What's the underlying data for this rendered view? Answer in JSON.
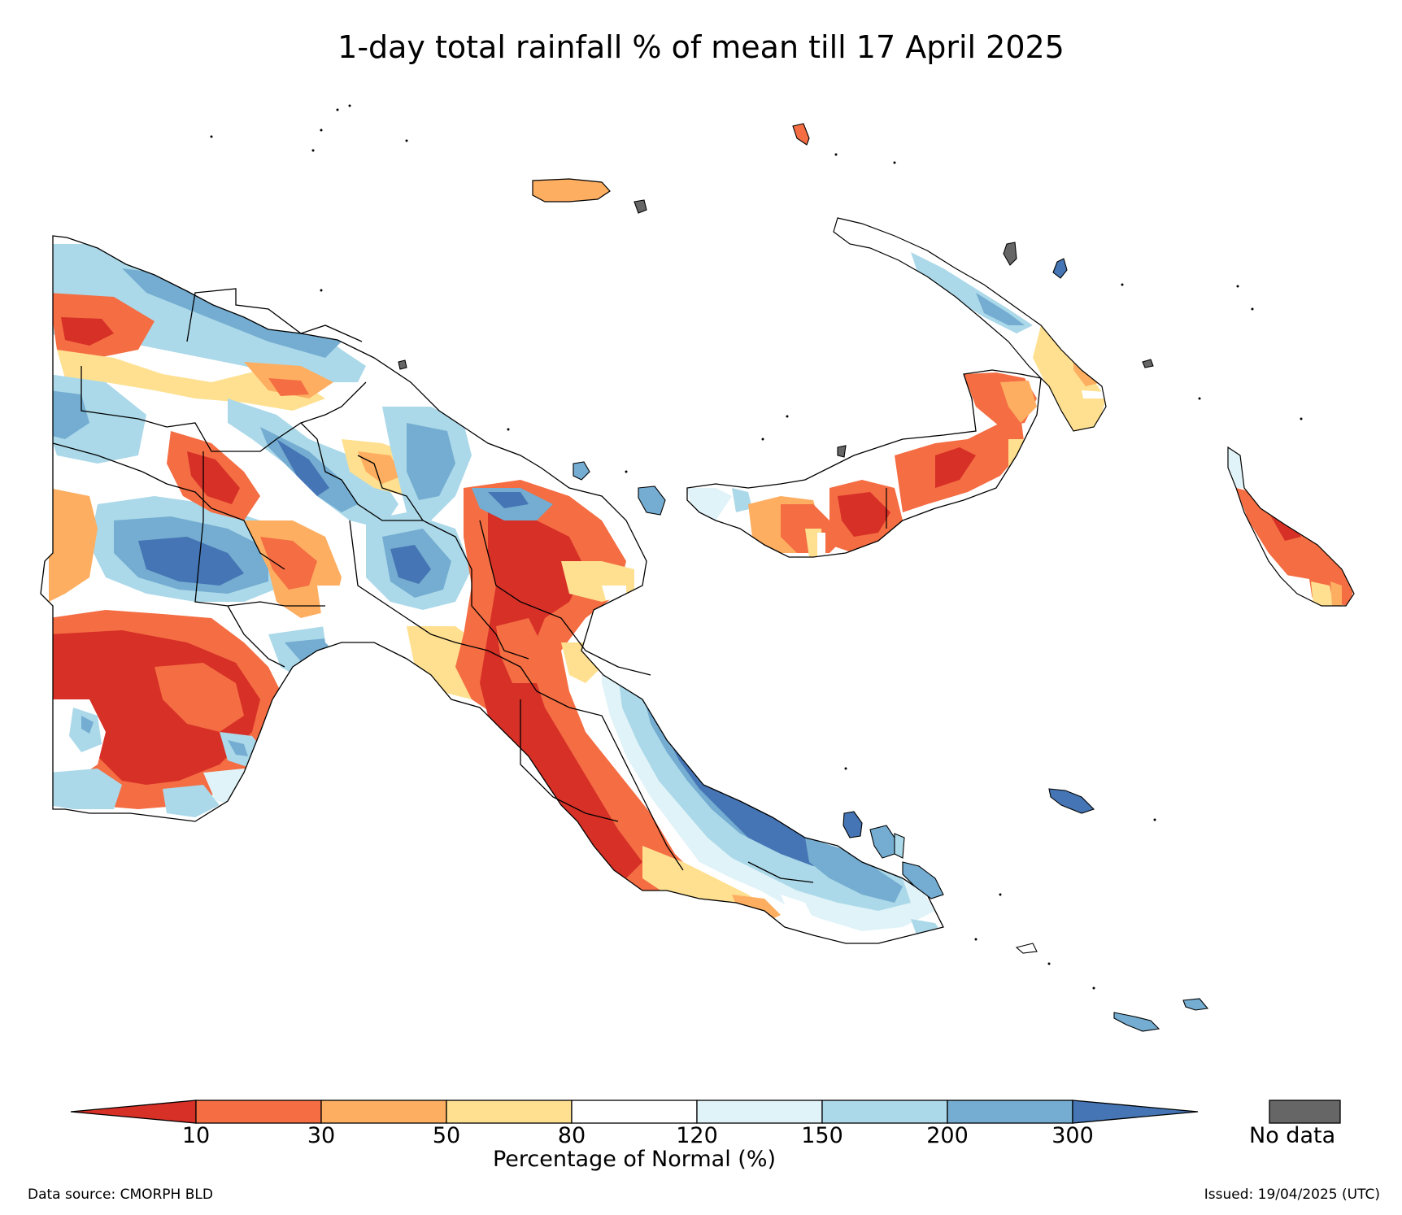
{
  "title": "1-day total rainfall % of mean till 17 April 2025",
  "legend": {
    "title": "Percentage of Normal (%)",
    "ticks": [
      "10",
      "30",
      "50",
      "80",
      "120",
      "150",
      "200",
      "300"
    ],
    "classes": [
      {
        "range": "<10",
        "color": "#d73027"
      },
      {
        "range": "10-30",
        "color": "#f46d43"
      },
      {
        "range": "30-50",
        "color": "#fdae61"
      },
      {
        "range": "50-80",
        "color": "#fee090"
      },
      {
        "range": "80-120",
        "color": "#ffffff"
      },
      {
        "range": "120-150",
        "color": "#e0f3f8"
      },
      {
        "range": "150-200",
        "color": "#abd9e9"
      },
      {
        "range": "200-300",
        "color": "#74add1"
      },
      {
        "range": ">300",
        "color": "#4575b4"
      }
    ],
    "no_data_label": "No data",
    "no_data_color": "#666666"
  },
  "source": "Data source: CMORPH BLD",
  "issued": "Issued: 19/04/2025 (UTC)"
}
